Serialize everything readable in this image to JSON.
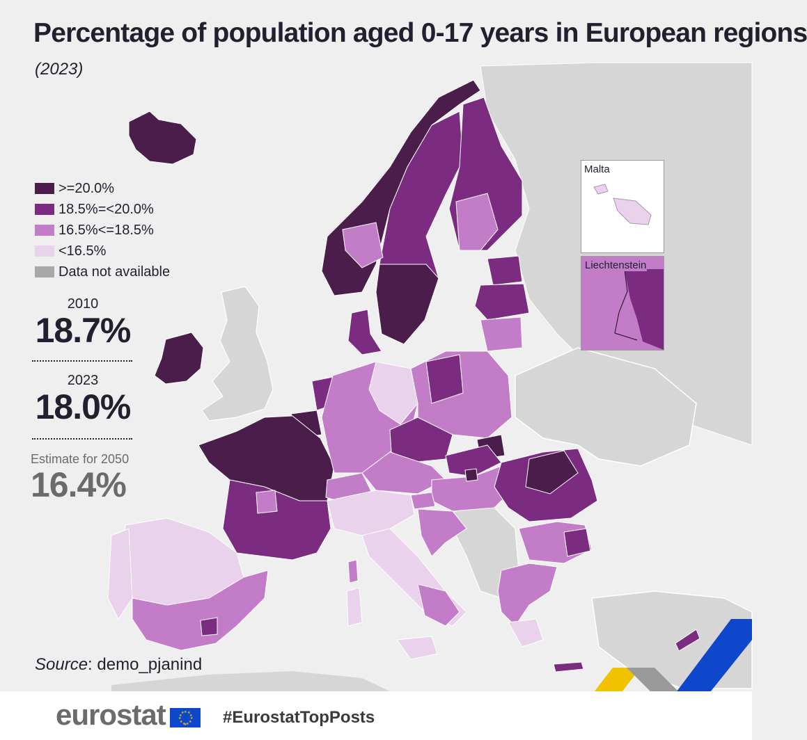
{
  "header": {
    "title": "Percentage of population aged 0-17 years in European regions",
    "subtitle": "(2023)"
  },
  "legend": {
    "items": [
      {
        "label": ">=20.0%",
        "color": "#4a1d4a"
      },
      {
        "label": "18.5%=<20.0%",
        "color": "#7b2b80"
      },
      {
        "label": "16.5%<=18.5%",
        "color": "#c27cc8"
      },
      {
        "label": "<16.5%",
        "color": "#ebd2ec"
      },
      {
        "label": "Data not available",
        "color": "#a8a8a8"
      }
    ]
  },
  "stats": {
    "y2010": {
      "label": "2010",
      "value": "18.7%"
    },
    "y2023": {
      "label": "2023",
      "value": "18.0%"
    },
    "y2050": {
      "label": "Estimate for 2050",
      "value": "16.4%"
    }
  },
  "insets": {
    "malta": {
      "label": "Malta"
    },
    "liechtenstein": {
      "label": "Liechtenstein"
    }
  },
  "source": {
    "prefix": "Source",
    "text": ": demo_pjanind"
  },
  "footer": {
    "brand": "eurostat",
    "hashtag": "#EurostatTopPosts",
    "accent_colors": [
      "#f2c200",
      "#0e47cb",
      "#9a9a9a"
    ]
  }
}
